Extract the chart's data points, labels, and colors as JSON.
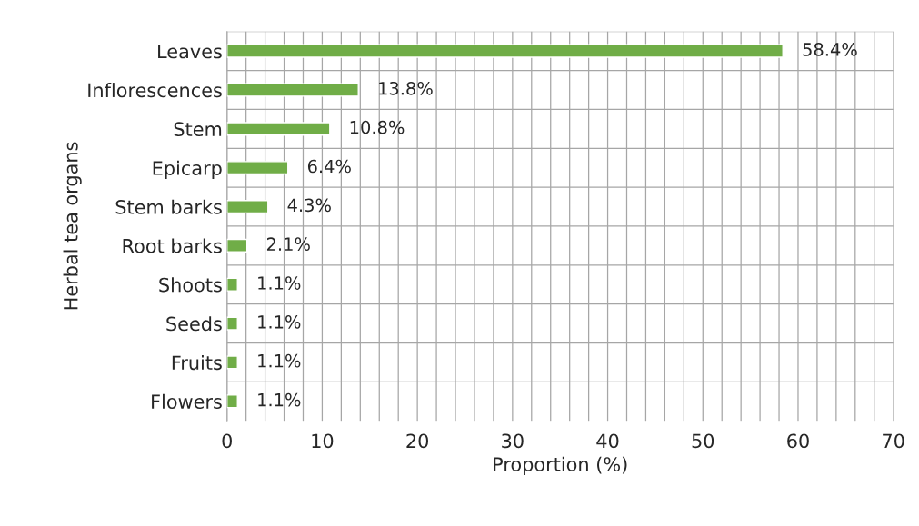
{
  "chart_data": {
    "type": "bar",
    "orientation": "horizontal",
    "xlabel": "Proportion (%)",
    "ylabel": "Herbal tea organs",
    "categories": [
      "Leaves",
      "Inflorescences",
      "Stem",
      "Epicarp",
      "Stem barks",
      "Root barks",
      "Shoots",
      "Seeds",
      "Fruits",
      "Flowers"
    ],
    "values": [
      58.4,
      13.8,
      10.8,
      6.4,
      4.3,
      2.1,
      1.1,
      1.1,
      1.1,
      1.1
    ],
    "value_labels": [
      "58.4%",
      "13.8%",
      "10.8%",
      "6.4%",
      "4.3%",
      "2.1%",
      "1.1%",
      "1.1%",
      "1.1%",
      "1.1%"
    ],
    "color": "#70ad47",
    "xlim": [
      0,
      70
    ],
    "xticks": [
      0,
      {
        "value": 2,
        "label": null
      },
      {
        "value": 4,
        "label": null
      },
      {
        "value": 6,
        "label": null
      },
      {
        "value": 8,
        "label": null
      },
      10,
      {
        "value": 12,
        "label": null
      },
      {
        "value": 14,
        "label": null
      },
      {
        "value": 16,
        "label": null
      },
      {
        "value": 18,
        "label": null
      },
      20,
      {
        "value": 22,
        "label": null
      },
      {
        "value": 24,
        "label": null
      },
      {
        "value": 26,
        "label": null
      },
      {
        "value": 28,
        "label": null
      },
      30,
      {
        "value": 32,
        "label": null
      },
      {
        "value": 34,
        "label": null
      },
      {
        "value": 36,
        "label": null
      },
      {
        "value": 38,
        "label": null
      },
      40,
      {
        "value": 42,
        "label": null
      },
      {
        "value": 44,
        "label": null
      },
      {
        "value": 46,
        "label": null
      },
      {
        "value": 48,
        "label": null
      },
      50,
      {
        "value": 52,
        "label": null
      },
      {
        "value": 54,
        "label": null
      },
      {
        "value": 56,
        "label": null
      },
      {
        "value": 58,
        "label": null
      },
      60,
      {
        "value": 62,
        "label": null
      },
      {
        "value": 64,
        "label": null
      },
      {
        "value": 66,
        "label": null
      },
      {
        "value": 68,
        "label": null
      },
      70
    ],
    "grid": true,
    "legend": false
  }
}
